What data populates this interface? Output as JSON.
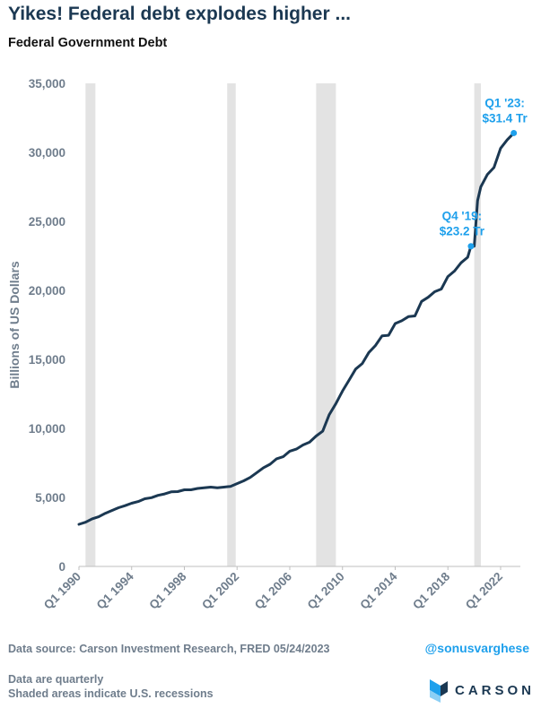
{
  "headline": "Yikes! Federal debt explodes higher ...",
  "footer": {
    "source": "Data source: Carson Investment Research, FRED   05/24/2023",
    "handle": "@sonusvarghese",
    "notes": [
      "Data are quarterly",
      "Shaded areas indicate U.S. recessions"
    ],
    "logo_text": "CARSON"
  },
  "colors": {
    "line": "#1b3852",
    "annotation": "#1ea0ec",
    "recession": "#e3e3e3",
    "axis_text": "#6f7d8c"
  },
  "chart_data": {
    "type": "line",
    "title": "Federal Government Debt",
    "ylabel": "Billions of US Dollars",
    "xlabel": "",
    "ylim": [
      0,
      35000
    ],
    "yticks": [
      0,
      5000,
      10000,
      15000,
      20000,
      25000,
      30000,
      35000
    ],
    "ytick_labels": [
      "0",
      "5,000",
      "10,000",
      "15,000",
      "20,000",
      "25,000",
      "30,000",
      "35,000"
    ],
    "xlim": [
      1990.0,
      2023.5
    ],
    "xtick_positions": [
      1990,
      1994,
      1998,
      2002,
      2006,
      2010,
      2014,
      2018,
      2022
    ],
    "xtick_labels": [
      "Q1 1990",
      "Q1 1994",
      "Q1 1998",
      "Q1 2002",
      "Q1 2006",
      "Q1 2010",
      "Q1 2014",
      "Q1 2018",
      "Q1 2022"
    ],
    "grid": false,
    "recessions": [
      {
        "start": 1990.5,
        "end": 1991.25
      },
      {
        "start": 2001.25,
        "end": 2001.9
      },
      {
        "start": 2008.0,
        "end": 2009.5
      },
      {
        "start": 2020.0,
        "end": 2020.5
      }
    ],
    "series": [
      {
        "x": [
          1990.0,
          1990.5,
          1991.0,
          1991.5,
          1992.0,
          1992.5,
          1993.0,
          1993.5,
          1994.0,
          1994.5,
          1995.0,
          1995.5,
          1996.0,
          1996.5,
          1997.0,
          1997.5,
          1998.0,
          1998.5,
          1999.0,
          1999.5,
          2000.0,
          2000.5,
          2001.0,
          2001.5,
          2002.0,
          2002.5,
          2003.0,
          2003.5,
          2004.0,
          2004.5,
          2005.0,
          2005.5,
          2006.0,
          2006.5,
          2007.0,
          2007.5,
          2008.0,
          2008.5,
          2009.0,
          2009.5,
          2010.0,
          2010.5,
          2011.0,
          2011.5,
          2012.0,
          2012.5,
          2013.0,
          2013.5,
          2014.0,
          2014.5,
          2015.0,
          2015.5,
          2016.0,
          2016.5,
          2017.0,
          2017.5,
          2018.0,
          2018.5,
          2019.0,
          2019.5,
          2019.75,
          2020.0,
          2020.25,
          2020.5,
          2021.0,
          2021.5,
          2022.0,
          2022.5,
          2023.0
        ],
        "values": [
          3050,
          3200,
          3450,
          3600,
          3850,
          4050,
          4250,
          4400,
          4580,
          4700,
          4900,
          4980,
          5150,
          5250,
          5400,
          5420,
          5550,
          5550,
          5650,
          5700,
          5750,
          5700,
          5750,
          5800,
          6000,
          6200,
          6450,
          6800,
          7150,
          7400,
          7800,
          7950,
          8350,
          8500,
          8800,
          9000,
          9450,
          9800,
          11000,
          11800,
          12700,
          13500,
          14300,
          14700,
          15500,
          16000,
          16700,
          16750,
          17600,
          17800,
          18100,
          18150,
          19200,
          19500,
          19900,
          20100,
          21000,
          21400,
          22000,
          22400,
          23200,
          23200,
          26500,
          27500,
          28400,
          28900,
          30300,
          30900,
          31400
        ]
      }
    ],
    "annotations": [
      {
        "x": 2019.75,
        "y": 23200,
        "lines": [
          "Q4 '19:",
          "$23.2 Tr"
        ]
      },
      {
        "x": 2023.0,
        "y": 31400,
        "lines": [
          "Q1 '23:",
          "$31.4 Tr"
        ]
      }
    ]
  }
}
